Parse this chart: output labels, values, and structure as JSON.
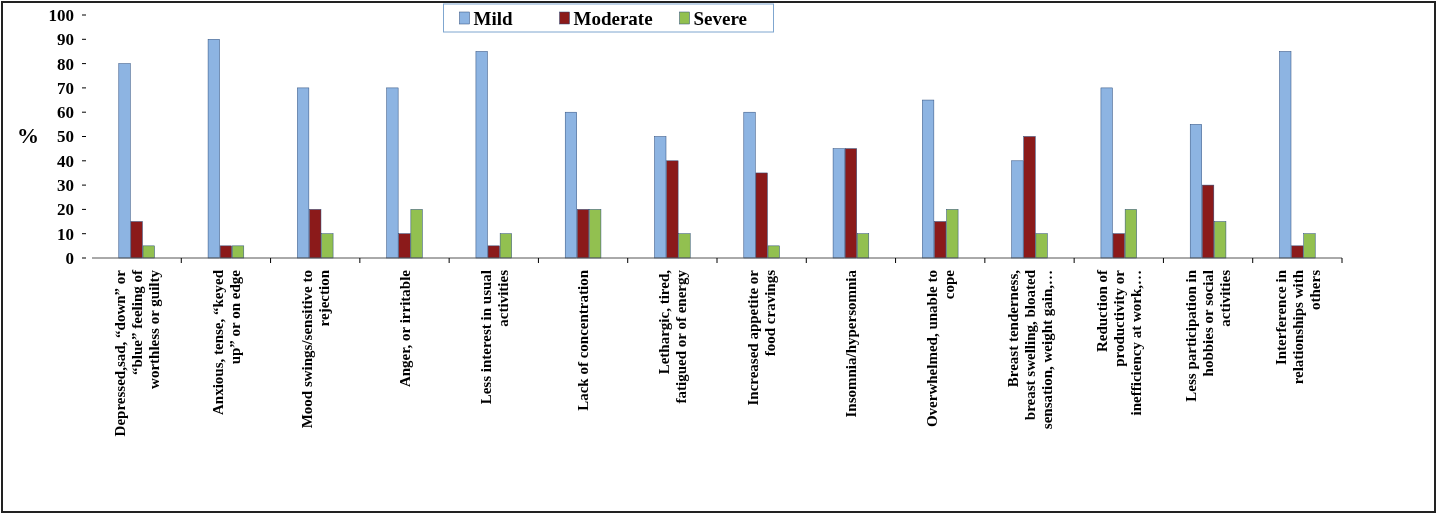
{
  "chart_data": {
    "type": "bar",
    "ylabel": "%",
    "categories": [
      "Depressed,sad, “down” or “blue” feeling of worthless or guilty",
      "Anxious, tense, “keyed up” or on edge",
      "Mood swings/sensitive to rejection",
      "Anger, or irritable",
      "Less interest in usual activities",
      "Lack of concentration",
      "Lethargic, tired, fatigued or of energy",
      "Increased appetite or food cravings",
      "Insomnia/hypersomnia",
      "Overwhelmed, unable to cope",
      "Breast tenderness, breast swelling, bloated sensation, weight gain,…",
      "Reduction of productivity or inefficiency at work,…",
      "Less participation in hobbies or social activities",
      "Interference in relationships with others"
    ],
    "series": [
      {
        "name": "Mild",
        "color": "#8db4e2",
        "values": [
          80,
          90,
          70,
          70,
          85,
          60,
          50,
          60,
          45,
          65,
          40,
          70,
          55,
          85
        ]
      },
      {
        "name": "Moderate",
        "color": "#8b1a1a",
        "values": [
          15,
          5,
          20,
          10,
          5,
          20,
          40,
          35,
          45,
          15,
          50,
          10,
          30,
          5
        ]
      },
      {
        "name": "Severe",
        "color": "#92c050",
        "values": [
          5,
          5,
          10,
          20,
          10,
          20,
          10,
          5,
          10,
          20,
          10,
          20,
          15,
          10
        ]
      }
    ],
    "ylim": [
      0,
      100
    ],
    "yticks": [
      0,
      10,
      20,
      30,
      40,
      50,
      60,
      70,
      80,
      90,
      100
    ],
    "legend": "top",
    "grid": false
  }
}
